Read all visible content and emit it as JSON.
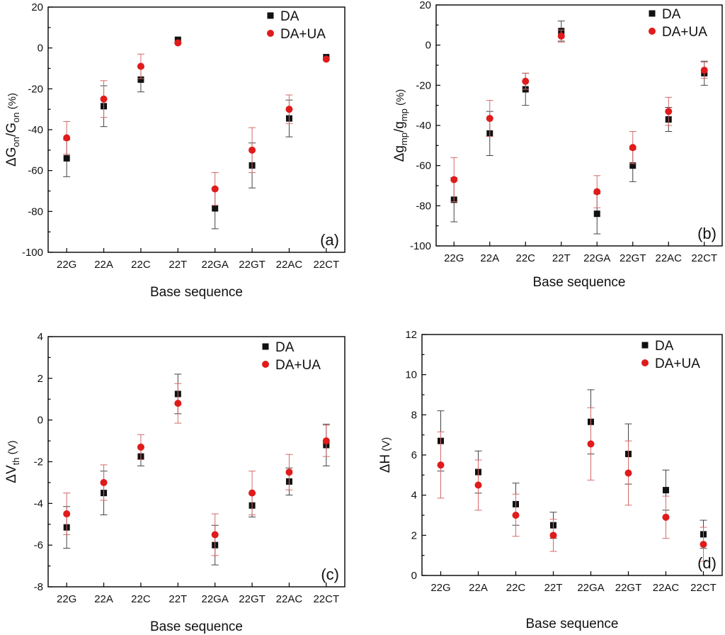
{
  "chart_data": [
    {
      "type": "scatter",
      "panel_label": "(a)",
      "ylabel": {
        "delta": "ΔG",
        "sub1": "on",
        "slash": "/G",
        "sub2": "on",
        "unit": " (%)"
      },
      "xlabel": "Base sequence",
      "categories": [
        "22G",
        "22A",
        "22C",
        "22T",
        "22GA",
        "22GT",
        "22AC",
        "22CT"
      ],
      "ylim": [
        -100,
        20
      ],
      "yticks": [
        -100,
        -80,
        -60,
        -40,
        -20,
        0,
        20
      ],
      "legend_position": "top-right",
      "series": [
        {
          "name": "DA",
          "marker": "square",
          "color": "#111111",
          "values": [
            -54,
            -28.5,
            -15.5,
            4,
            -78.5,
            -57.5,
            -34.5,
            -4.5
          ],
          "errors": [
            9,
            10,
            6,
            0,
            10,
            11,
            9,
            0
          ]
        },
        {
          "name": "DA+UA",
          "marker": "circle",
          "color": "#e01b1b",
          "values": [
            -44,
            -25,
            -9,
            2.5,
            -69,
            -50,
            -30,
            -5.5
          ],
          "errors": [
            8,
            9,
            6,
            0,
            8,
            11,
            7,
            0
          ]
        }
      ]
    },
    {
      "type": "scatter",
      "panel_label": "(b)",
      "ylabel": {
        "delta": "Δg",
        "sub1": "mp",
        "slash": "/g",
        "sub2": "mp",
        "unit": " (%)"
      },
      "xlabel": "Base sequence",
      "categories": [
        "22G",
        "22A",
        "22C",
        "22T",
        "22GA",
        "22GT",
        "22AC",
        "22CT"
      ],
      "ylim": [
        -100,
        20
      ],
      "yticks": [
        -100,
        -80,
        -60,
        -40,
        -20,
        0,
        20
      ],
      "legend_position": "top-right",
      "series": [
        {
          "name": "DA",
          "marker": "square",
          "color": "#111111",
          "values": [
            -77,
            -44,
            -22,
            7,
            -84,
            -60,
            -37,
            -14
          ],
          "errors": [
            11,
            11,
            8,
            5,
            10,
            8,
            6,
            6
          ]
        },
        {
          "name": "DA+UA",
          "marker": "circle",
          "color": "#e01b1b",
          "values": [
            -67,
            -36.5,
            -18,
            4.5,
            -73,
            -51,
            -33,
            -12.5
          ],
          "errors": [
            11,
            9,
            4,
            3,
            8,
            8,
            7,
            4
          ]
        }
      ]
    },
    {
      "type": "scatter",
      "panel_label": "(c)",
      "ylabel": {
        "delta": "ΔV",
        "sub1": "th",
        "slash": "",
        "sub2": "",
        "unit": " (V)"
      },
      "xlabel": "Base sequence",
      "categories": [
        "22G",
        "22A",
        "22C",
        "22T",
        "22GA",
        "22GT",
        "22AC",
        "22CT"
      ],
      "ylim": [
        -8,
        4
      ],
      "yticks": [
        -8,
        -6,
        -4,
        -2,
        0,
        2,
        4
      ],
      "legend_position": "top-right",
      "series": [
        {
          "name": "DA",
          "marker": "square",
          "color": "#111111",
          "values": [
            -5.15,
            -3.5,
            -1.75,
            1.25,
            -6,
            -4.1,
            -2.95,
            -1.2
          ],
          "errors": [
            1,
            1.05,
            0.45,
            0.95,
            0.95,
            0.55,
            0.65,
            1
          ]
        },
        {
          "name": "DA+UA",
          "marker": "circle",
          "color": "#e01b1b",
          "values": [
            -4.5,
            -3,
            -1.3,
            0.8,
            -5.5,
            -3.5,
            -2.5,
            -1
          ],
          "errors": [
            1,
            0.85,
            0.6,
            0.95,
            1,
            1.05,
            0.85,
            0.75
          ]
        }
      ]
    },
    {
      "type": "scatter",
      "panel_label": "(d)",
      "ylabel": {
        "delta": "ΔH",
        "sub1": "",
        "slash": "",
        "sub2": "",
        "unit": " (V)"
      },
      "xlabel": "Base sequence",
      "categories": [
        "22G",
        "22A",
        "22C",
        "22T",
        "22GA",
        "22GT",
        "22AC",
        "22CT"
      ],
      "ylim": [
        0,
        12
      ],
      "yticks": [
        0,
        2,
        4,
        6,
        8,
        10,
        12
      ],
      "legend_position": "top-right",
      "series": [
        {
          "name": "DA",
          "marker": "square",
          "color": "#111111",
          "values": [
            6.7,
            5.15,
            3.55,
            2.5,
            7.65,
            6.05,
            4.25,
            2.05
          ],
          "errors": [
            1.5,
            1.05,
            1.05,
            0.65,
            1.6,
            1.5,
            1,
            0.7
          ]
        },
        {
          "name": "DA+UA",
          "marker": "circle",
          "color": "#e01b1b",
          "values": [
            5.5,
            4.5,
            3,
            2,
            6.55,
            5.1,
            2.9,
            1.55
          ],
          "errors": [
            1.65,
            1.25,
            1.05,
            0.8,
            1.8,
            1.6,
            1.05,
            0.85
          ]
        }
      ]
    }
  ]
}
